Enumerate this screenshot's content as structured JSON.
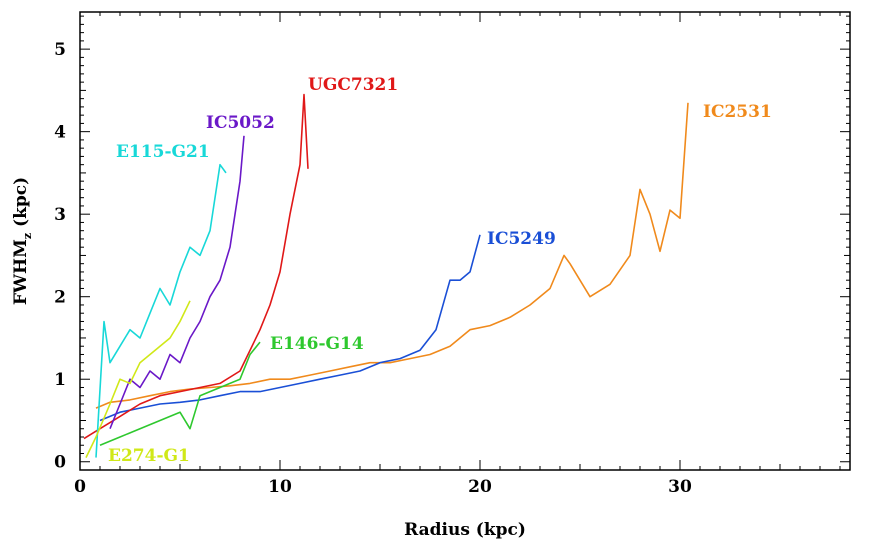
{
  "chart_data": {
    "type": "line",
    "xlabel": "Radius (kpc)",
    "ylabel": "FWHM",
    "ylabel_subscript": "z",
    "ylabel_unit": " (kpc)",
    "xlim": [
      0,
      38.5
    ],
    "ylim": [
      -0.1,
      5.45
    ],
    "xticks": [
      0,
      10,
      20,
      30
    ],
    "yticks": [
      0,
      1,
      2,
      3,
      4,
      5
    ],
    "grid": false,
    "series": [
      {
        "name": "IC2531",
        "color": "#f08a1c",
        "x": [
          0.8,
          1.5,
          2.5,
          3.5,
          4.5,
          5.5,
          6.5,
          7.5,
          8.5,
          9.5,
          10.5,
          11.5,
          12.5,
          13.5,
          14.5,
          15.5,
          16.5,
          17.5,
          18.5,
          19.5,
          20.5,
          21.5,
          22.5,
          23.5,
          24.2,
          24.5,
          25.5,
          26.5,
          27.5,
          28,
          28.5,
          29,
          29.5,
          30,
          30.4
        ],
        "y": [
          0.65,
          0.72,
          0.75,
          0.8,
          0.85,
          0.88,
          0.9,
          0.92,
          0.95,
          1.0,
          1.0,
          1.05,
          1.1,
          1.15,
          1.2,
          1.2,
          1.25,
          1.3,
          1.4,
          1.6,
          1.65,
          1.75,
          1.9,
          2.1,
          2.5,
          2.4,
          2.0,
          2.15,
          2.5,
          3.3,
          3.0,
          2.55,
          3.05,
          2.95,
          4.35
        ]
      },
      {
        "name": "IC5249",
        "color": "#1a4fd6",
        "x": [
          1,
          2,
          3,
          4,
          5,
          6,
          7,
          8,
          9,
          10,
          11,
          12,
          13,
          14,
          15,
          16,
          17,
          17.8,
          18.5,
          19,
          19.5,
          20
        ],
        "y": [
          0.5,
          0.6,
          0.65,
          0.7,
          0.72,
          0.75,
          0.8,
          0.85,
          0.85,
          0.9,
          0.95,
          1.0,
          1.05,
          1.1,
          1.2,
          1.25,
          1.35,
          1.6,
          2.2,
          2.2,
          2.3,
          2.75
        ]
      },
      {
        "name": "UGC7321",
        "color": "#e01818",
        "x": [
          0.2,
          1,
          2,
          3,
          4,
          5,
          6,
          7,
          8,
          9,
          9.5,
          10,
          10.5,
          11,
          11.2,
          11.4
        ],
        "y": [
          0.28,
          0.4,
          0.55,
          0.7,
          0.8,
          0.85,
          0.9,
          0.95,
          1.1,
          1.6,
          1.9,
          2.3,
          3.0,
          3.6,
          4.45,
          3.55
        ]
      },
      {
        "name": "E146-G14",
        "color": "#2ec82e",
        "x": [
          1,
          2,
          3,
          4,
          4.5,
          5,
          5.5,
          6,
          7,
          8,
          8.5,
          9
        ],
        "y": [
          0.2,
          0.3,
          0.4,
          0.5,
          0.55,
          0.6,
          0.4,
          0.8,
          0.9,
          1.0,
          1.3,
          1.45
        ]
      },
      {
        "name": "IC5052",
        "color": "#6a18c8",
        "x": [
          1.5,
          2,
          2.5,
          3,
          3.5,
          4,
          4.5,
          5,
          5.5,
          6,
          6.5,
          7,
          7.5,
          8,
          8.2
        ],
        "y": [
          0.4,
          0.7,
          1.0,
          0.9,
          1.1,
          1.0,
          1.3,
          1.2,
          1.5,
          1.7,
          2.0,
          2.2,
          2.6,
          3.4,
          3.95
        ]
      },
      {
        "name": "E115-G21",
        "color": "#18d8d8",
        "x": [
          0.8,
          1.2,
          1.5,
          2,
          2.5,
          3,
          3.5,
          4,
          4.5,
          5,
          5.5,
          6,
          6.5,
          7,
          7.3
        ],
        "y": [
          0.05,
          1.7,
          1.2,
          1.4,
          1.6,
          1.5,
          1.8,
          2.1,
          1.9,
          2.3,
          2.6,
          2.5,
          2.8,
          3.6,
          3.5
        ]
      },
      {
        "name": "E274-G1",
        "color": "#d0e818",
        "x": [
          0.3,
          0.8,
          1.5,
          2,
          2.5,
          3,
          3.5,
          4,
          4.5,
          5,
          5.5
        ],
        "y": [
          0.05,
          0.3,
          0.7,
          1.0,
          0.95,
          1.2,
          1.3,
          1.4,
          1.5,
          1.7,
          1.95
        ]
      }
    ],
    "annotations": [
      {
        "text": "UGC7321",
        "color": "#e01818"
      },
      {
        "text": "IC2531",
        "color": "#f08a1c"
      },
      {
        "text": "IC5052",
        "color": "#6a18c8"
      },
      {
        "text": "E115-G21",
        "color": "#18d8d8"
      },
      {
        "text": "IC5249",
        "color": "#1a4fd6"
      },
      {
        "text": "E146-G14",
        "color": "#2ec82e"
      },
      {
        "text": "E274-G1",
        "color": "#d0e818"
      }
    ]
  }
}
